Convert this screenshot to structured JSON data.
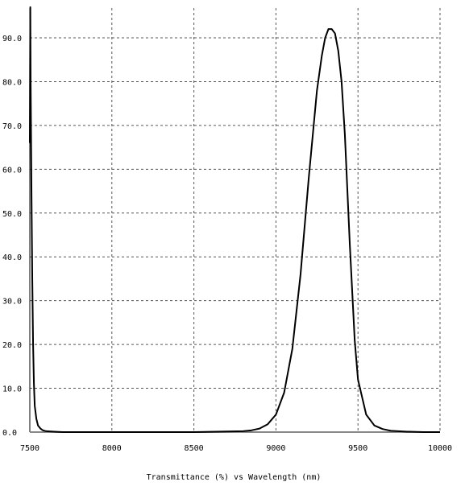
{
  "chart_data": {
    "type": "line",
    "title": "",
    "xlabel": "Transmittance (%)  vs  Wavelength (nm)",
    "ylabel": "",
    "xlim": [
      7500,
      10000
    ],
    "ylim": [
      0,
      100
    ],
    "grid": true,
    "legend": "none",
    "x_ticks": [
      7500,
      8000,
      8500,
      9000,
      9500,
      10000
    ],
    "x_tick_labels": [
      "7500",
      "8000",
      "8500",
      "9000",
      "9500",
      "10000"
    ],
    "y_ticks": [
      0,
      10,
      20,
      30,
      40,
      50,
      60,
      70,
      80,
      90
    ],
    "y_tick_labels": [
      "0.0",
      "10.0",
      "20.0",
      "30.0",
      "40.0",
      "50.0",
      "60.0",
      "70.0",
      "80.0",
      "90.0"
    ],
    "line_color": "#000000",
    "grid_color": "#555555",
    "series": [
      {
        "x": [
          7500,
          7503,
          7505,
          7510,
          7515,
          7520,
          7525,
          7530,
          7540,
          7550,
          7565,
          7580,
          7600,
          7650,
          7700,
          8000,
          8500,
          8800,
          8850,
          8900,
          8950,
          9000,
          9050,
          9100,
          9150,
          9200,
          9250,
          9280,
          9300,
          9320,
          9340,
          9360,
          9380,
          9400,
          9420,
          9450,
          9480,
          9500,
          9550,
          9600,
          9650,
          9700,
          9800,
          9900,
          10000
        ],
        "y": [
          66,
          97,
          80,
          55,
          35,
          20,
          11,
          6,
          3,
          1.5,
          0.8,
          0.4,
          0.2,
          0.1,
          0,
          0,
          0,
          0.2,
          0.4,
          0.8,
          1.8,
          4,
          9,
          19,
          36,
          58,
          78,
          86,
          90,
          92,
          92,
          91,
          87,
          80,
          68,
          43,
          21,
          12,
          4,
          1.5,
          0.7,
          0.3,
          0.1,
          0,
          0
        ]
      }
    ]
  }
}
